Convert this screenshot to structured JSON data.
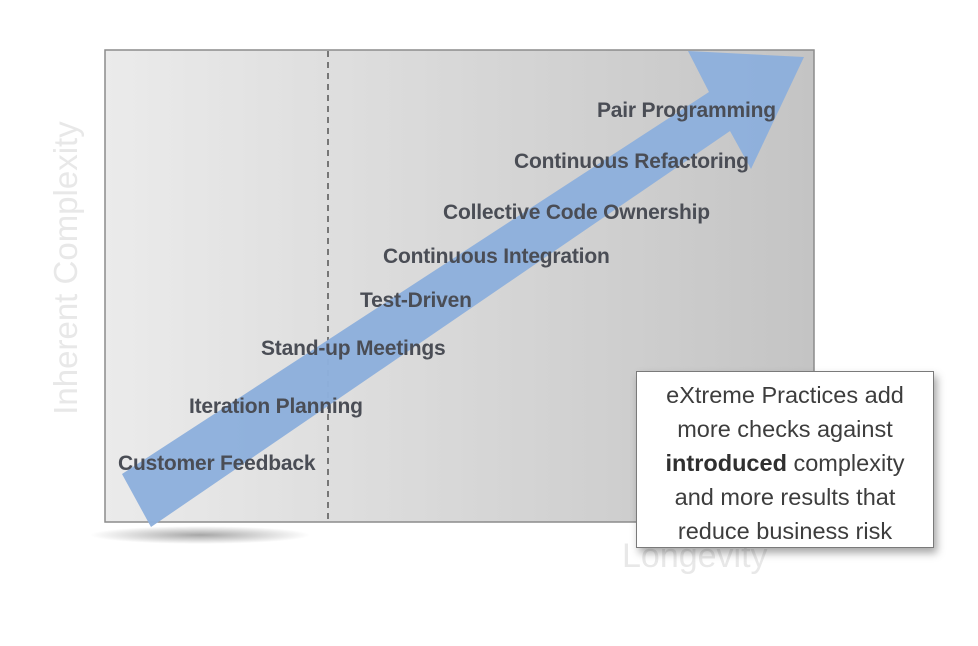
{
  "diagram": {
    "y_axis_label": "Inherent Complexity",
    "x_axis_label": "Longevity",
    "practices": [
      "Pair Programming",
      "Continuous Refactoring",
      "Collective Code Ownership",
      "Continuous Integration",
      "Test-Driven",
      "Stand-up Meetings",
      "Iteration Planning",
      "Customer Feedback"
    ],
    "callout": {
      "line1": "eXtreme Practices add",
      "line2": "more checks against",
      "line3_bold": "introduced",
      "line3_rest": " complexity",
      "line4": "and more results that",
      "line5": "reduce business risk"
    },
    "colors": {
      "arrow": "#8db0dc",
      "text": "#4a4d55",
      "axis_label": "#e8e8e8",
      "divider": "#777777"
    }
  }
}
